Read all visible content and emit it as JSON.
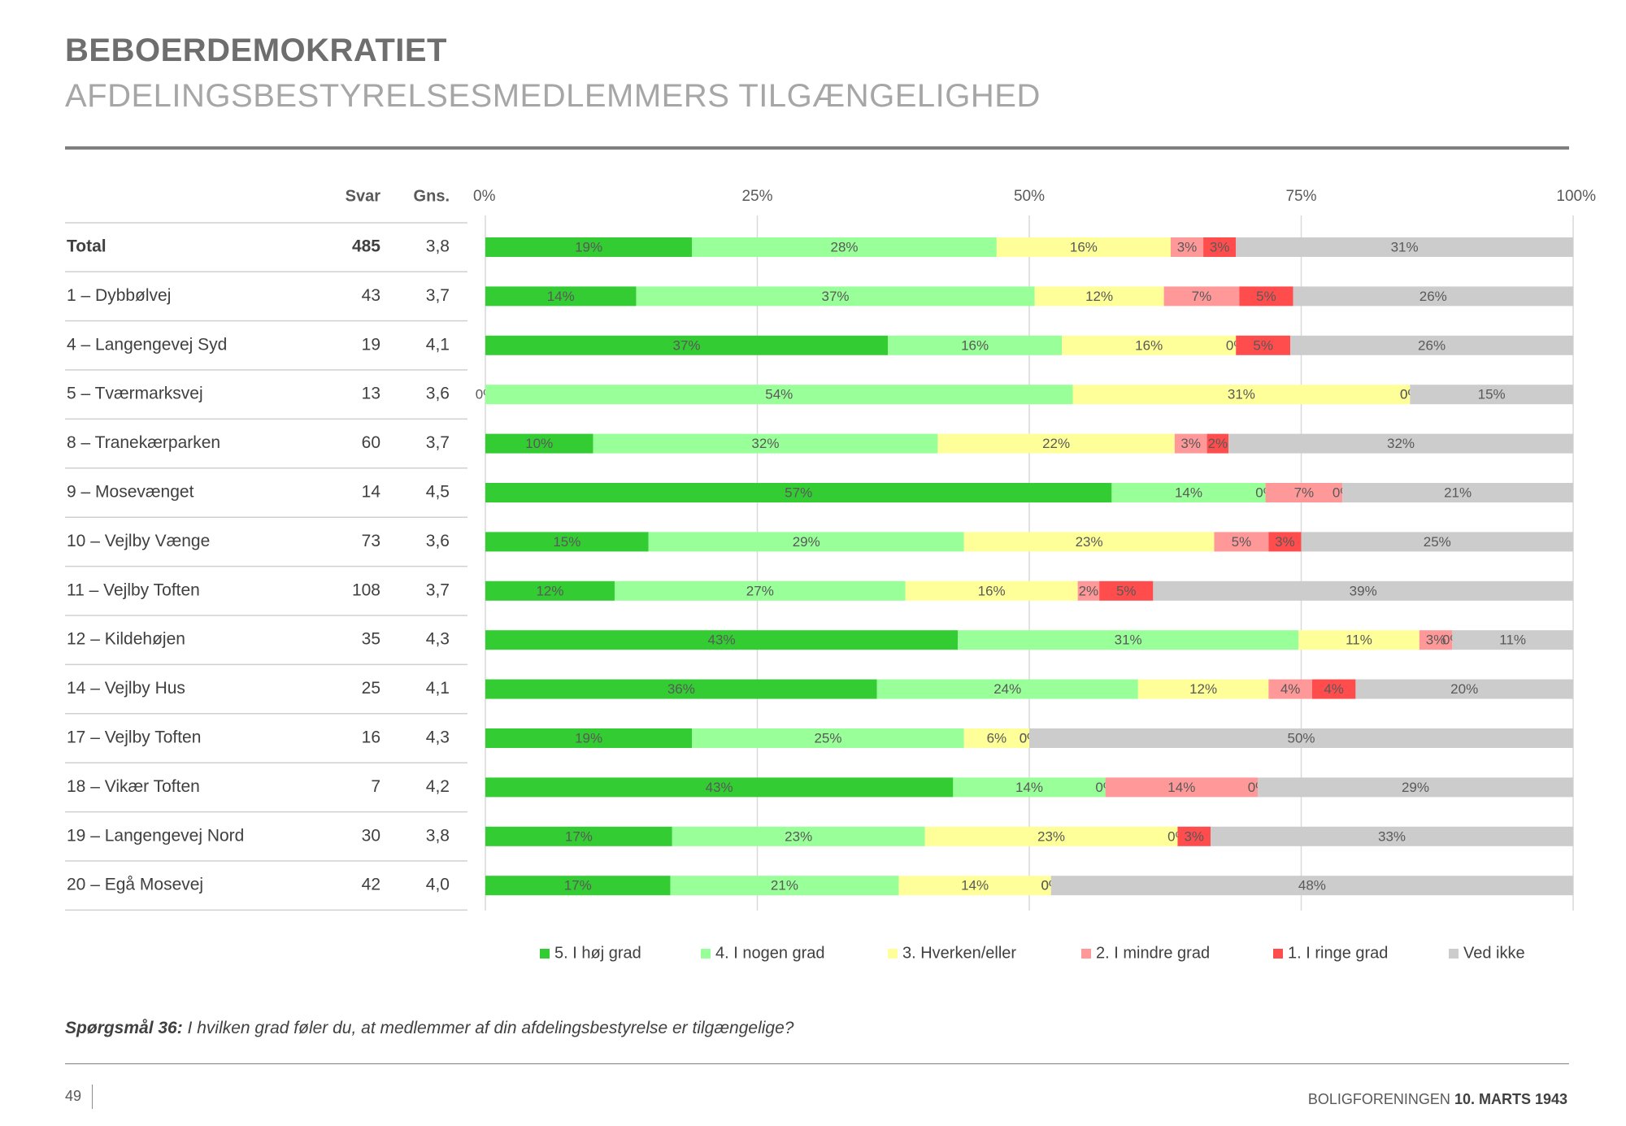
{
  "header": {
    "title": "BEBOERDEMOKRATIET",
    "subtitle": "AFDELINGSBESTYRELSESMEDLEMMERS TILGÆNGELIGHED"
  },
  "footer": {
    "question_label": "Spørgsmål 36:",
    "question_text": " I hvilken grad føler du, at medlemmer af din afdelingsbestyrelse er tilgængelige?",
    "page_number": "49",
    "org": "BOLIGFORENINGEN ",
    "date": "10. MARTS 1943"
  },
  "chart_data": {
    "type": "bar",
    "orientation": "horizontal",
    "stacked": "percent",
    "column_headers": {
      "name": "",
      "svar": "Svar",
      "gns": "Gns."
    },
    "x_ticks": [
      "0%",
      "25%",
      "50%",
      "75%",
      "100%"
    ],
    "xlim": [
      0,
      100
    ],
    "grid": true,
    "legend_position": "bottom",
    "series": [
      {
        "name": "5. I høj grad",
        "color": "#33cc33"
      },
      {
        "name": "4. I nogen grad",
        "color": "#99ff99"
      },
      {
        "name": "3. Hverken/eller",
        "color": "#ffff99"
      },
      {
        "name": "2. I mindre grad",
        "color": "#ff9999"
      },
      {
        "name": "1. I ringe grad",
        "color": "#ff4d4d"
      },
      {
        "name": "Ved ikke",
        "color": "#cccccc"
      }
    ],
    "rows": [
      {
        "label": "Total",
        "svar": "485",
        "gns": "3,8",
        "bold": true,
        "values": [
          19,
          28,
          16,
          3,
          3,
          31
        ]
      },
      {
        "label": "1 – Dybbølvej",
        "svar": "43",
        "gns": "3,7",
        "values": [
          14,
          37,
          12,
          7,
          5,
          26
        ]
      },
      {
        "label": "4 – Langengevej Syd",
        "svar": "19",
        "gns": "4,1",
        "values": [
          37,
          16,
          16,
          0,
          5,
          26
        ]
      },
      {
        "label": "5 – Tværmarksvej",
        "svar": "13",
        "gns": "3,6",
        "values": [
          0,
          54,
          31,
          0,
          0,
          15
        ]
      },
      {
        "label": "8 – Tranekærparken",
        "svar": "60",
        "gns": "3,7",
        "values": [
          10,
          32,
          22,
          3,
          2,
          32
        ]
      },
      {
        "label": "9 – Mosevænget",
        "svar": "14",
        "gns": "4,5",
        "values": [
          57,
          14,
          0,
          7,
          0,
          21
        ]
      },
      {
        "label": "10 – Vejlby Vænge",
        "svar": "73",
        "gns": "3,6",
        "values": [
          15,
          29,
          23,
          5,
          3,
          25
        ]
      },
      {
        "label": "11 – Vejlby Toften",
        "svar": "108",
        "gns": "3,7",
        "values": [
          12,
          27,
          16,
          2,
          5,
          39
        ]
      },
      {
        "label": "12 – Kildehøjen",
        "svar": "35",
        "gns": "4,3",
        "values": [
          43,
          31,
          11,
          3,
          0,
          11
        ]
      },
      {
        "label": "14 – Vejlby Hus",
        "svar": "25",
        "gns": "4,1",
        "values": [
          36,
          24,
          12,
          4,
          4,
          20
        ]
      },
      {
        "label": "17 – Vejlby Toften",
        "svar": "16",
        "gns": "4,3",
        "values": [
          19,
          25,
          6,
          0,
          0,
          50
        ]
      },
      {
        "label": "18 – Vikær Toften",
        "svar": "7",
        "gns": "4,2",
        "values": [
          43,
          14,
          0,
          14,
          0,
          29
        ]
      },
      {
        "label": "19 – Langengevej Nord",
        "svar": "30",
        "gns": "3,8",
        "values": [
          17,
          23,
          23,
          0,
          3,
          33
        ]
      },
      {
        "label": "20 – Egå Mosevej",
        "svar": "42",
        "gns": "4,0",
        "values": [
          17,
          21,
          14,
          0,
          0,
          48
        ]
      }
    ]
  }
}
